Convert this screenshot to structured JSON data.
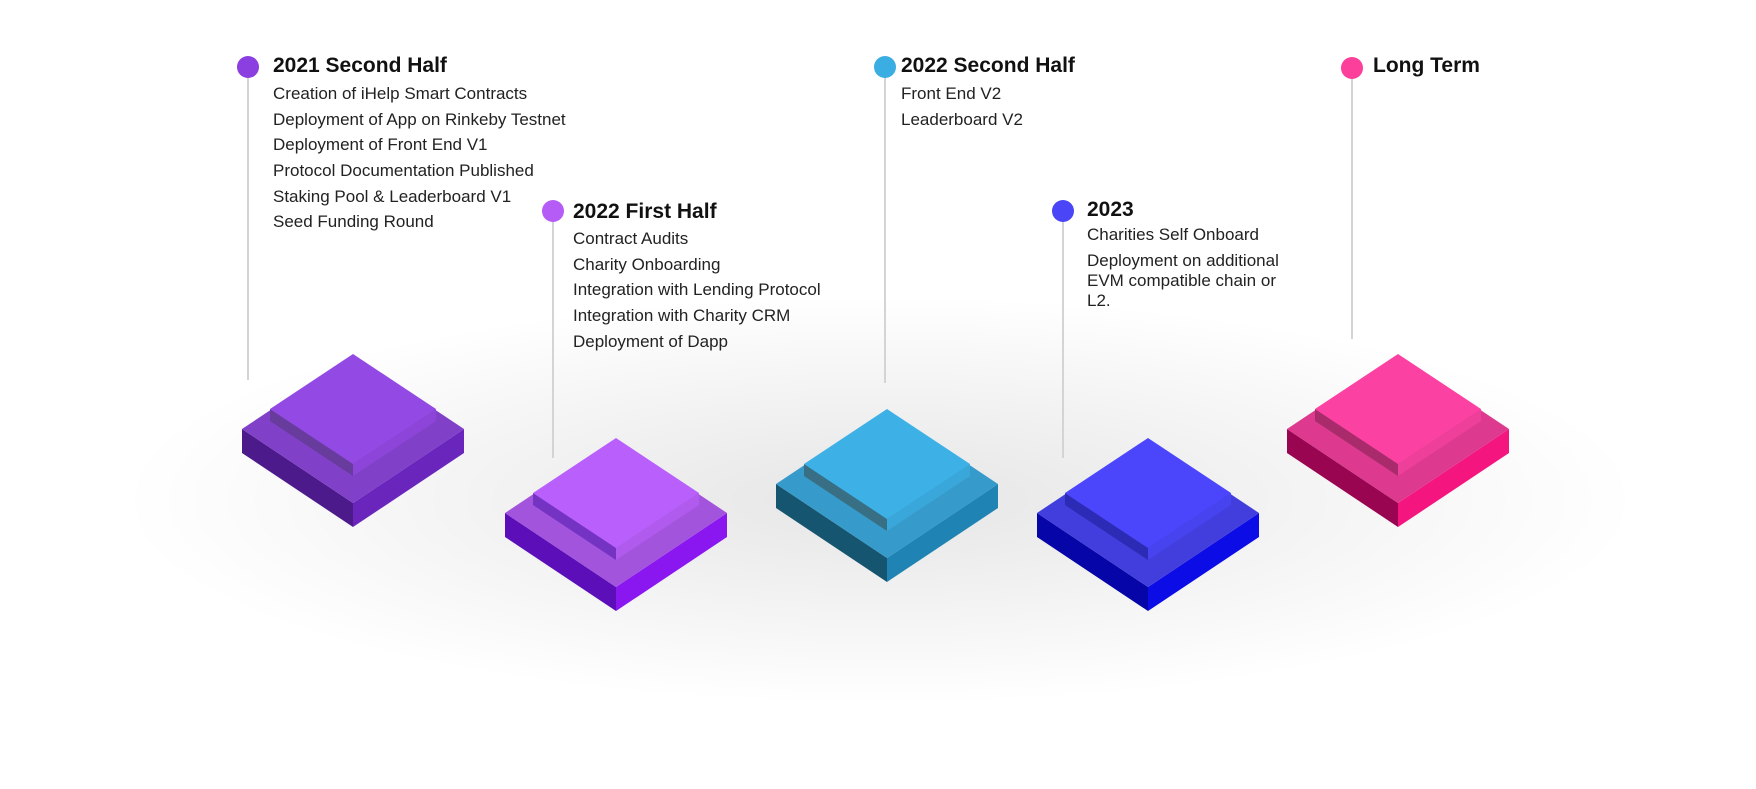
{
  "milestones": [
    {
      "title": "2021 Second Half",
      "items": [
        "Creation of iHelp Smart Contracts",
        "Deployment of App on Rinkeby Testnet",
        "Deployment of Front End V1",
        "Protocol Documentation Published",
        "Staking Pool & Leaderboard V1",
        "Seed Funding Round"
      ],
      "dot_color": "#8b3fe0",
      "colors": {
        "top": "#9349e3",
        "left": "#4d1a8c",
        "right": "#6a25bd"
      }
    },
    {
      "title": "2022 First Half",
      "items": [
        "Contract Audits",
        "Charity Onboarding",
        "Integration with Lending Protocol",
        "Integration with Charity CRM",
        "Deployment of Dapp"
      ],
      "dot_color": "#b55cf6",
      "colors": {
        "top": "#b95ffb",
        "left": "#5c0fb8",
        "right": "#8a16f0"
      }
    },
    {
      "title": "2022 Second Half",
      "items": [
        "Front End V2",
        "Leaderboard V2"
      ],
      "dot_color": "#3aaee2",
      "colors": {
        "top": "#3db0e6",
        "left": "#15556f",
        "right": "#1f84b4"
      }
    },
    {
      "title": "2023",
      "items": [
        "Charities Self Onboard",
        "Deployment on additional EVM compatible chain or L2."
      ],
      "dot_color": "#4a45f7",
      "colors": {
        "top": "#4b46fb",
        "left": "#0606a8",
        "right": "#0c0ce6"
      }
    },
    {
      "title": "Long Term",
      "items": [],
      "dot_color": "#fb3f9a",
      "colors": {
        "top": "#fb42a2",
        "left": "#9a0552",
        "right": "#f5157f"
      }
    }
  ]
}
